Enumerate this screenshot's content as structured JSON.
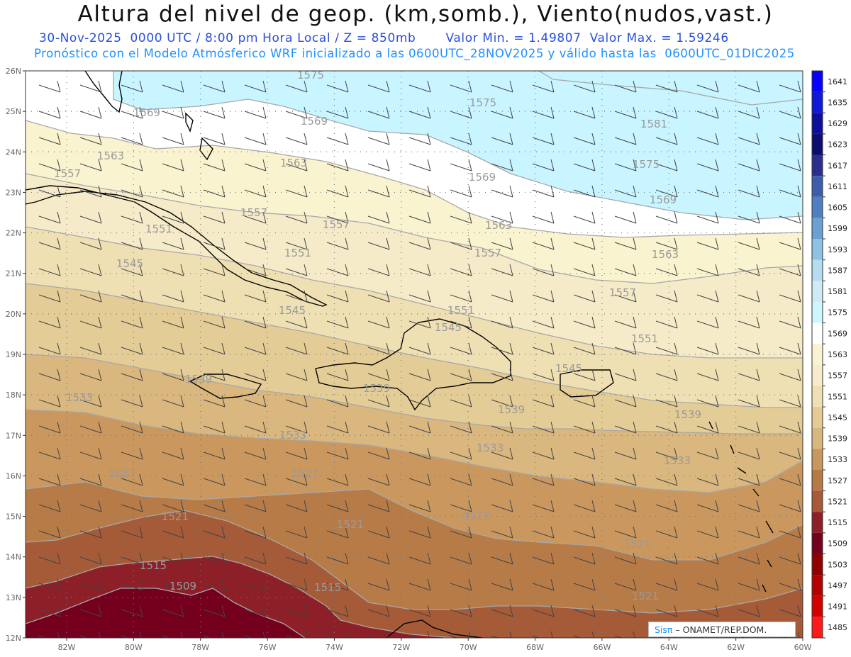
{
  "header": {
    "title": "Altura del nivel de geop. (km,somb.), Viento(nudos,vast.)",
    "line1_date": "30-Nov-2025  0000 UTC / 8:00 pm Hora Local / Z = 850mb",
    "line1_values": "Valor Min. = 1.49807  Valor Max. = 1.59246",
    "line2": "Pronóstico con el Modelo Atmósferico WRF inicializado a las 0600UTC_28NOV2025 y válido hasta las  0600UTC_01DIC2025"
  },
  "map": {
    "lat_labels": [
      "26N",
      "25N",
      "24N",
      "23N",
      "22N",
      "21N",
      "20N",
      "19N",
      "18N",
      "17N",
      "16N",
      "15N",
      "14N",
      "13N",
      "12N"
    ],
    "lon_labels": [
      "82W",
      "80W",
      "78W",
      "76W",
      "74W",
      "72W",
      "70W",
      "68W",
      "66W",
      "64W",
      "62W",
      "60W"
    ],
    "contour_labels": [
      {
        "text": "1575",
        "pos": "a"
      },
      {
        "text": "1575",
        "pos": "b"
      },
      {
        "text": "1581",
        "pos": "c"
      },
      {
        "text": "1569",
        "pos": "d"
      },
      {
        "text": "1569",
        "pos": "e"
      },
      {
        "text": "1575",
        "pos": "f"
      },
      {
        "text": "1563",
        "pos": "g"
      },
      {
        "text": "1563",
        "pos": "h"
      },
      {
        "text": "1569",
        "pos": "i"
      },
      {
        "text": "1569",
        "pos": "j"
      },
      {
        "text": "1557",
        "pos": "k"
      },
      {
        "text": "1557",
        "pos": "l"
      },
      {
        "text": "1557",
        "pos": "m"
      },
      {
        "text": "1563",
        "pos": "n"
      },
      {
        "text": "1551",
        "pos": "o"
      },
      {
        "text": "1551",
        "pos": "p"
      },
      {
        "text": "1557",
        "pos": "q"
      },
      {
        "text": "1563",
        "pos": "r"
      },
      {
        "text": "1545",
        "pos": "s"
      },
      {
        "text": "1557",
        "pos": "t"
      },
      {
        "text": "1545",
        "pos": "u"
      },
      {
        "text": "1551",
        "pos": "v"
      },
      {
        "text": "1545",
        "pos": "w"
      },
      {
        "text": "1551",
        "pos": "x"
      },
      {
        "text": "1539",
        "pos": "y"
      },
      {
        "text": "1545",
        "pos": "z"
      },
      {
        "text": "1533",
        "pos": "aa"
      },
      {
        "text": "1539",
        "pos": "ab"
      },
      {
        "text": "1539",
        "pos": "ac"
      },
      {
        "text": "1539",
        "pos": "ad"
      },
      {
        "text": "1533",
        "pos": "ae"
      },
      {
        "text": "1533",
        "pos": "af"
      },
      {
        "text": "1527",
        "pos": "ag"
      },
      {
        "text": "1527",
        "pos": "ah"
      },
      {
        "text": "1533",
        "pos": "ai"
      },
      {
        "text": "1521",
        "pos": "aj"
      },
      {
        "text": "1521",
        "pos": "ak"
      },
      {
        "text": "1527",
        "pos": "al"
      },
      {
        "text": "1521",
        "pos": "am"
      },
      {
        "text": "1515",
        "pos": "an"
      },
      {
        "text": "1509",
        "pos": "ao"
      },
      {
        "text": "1515",
        "pos": "ap"
      },
      {
        "text": "1521",
        "pos": "aq"
      }
    ]
  },
  "colorbar": {
    "levels": [
      "1641",
      "1635",
      "1629",
      "1623",
      "1617",
      "1611",
      "1605",
      "1599",
      "1593",
      "1587",
      "1581",
      "1575",
      "1569",
      "1563",
      "1557",
      "1551",
      "1545",
      "1539",
      "1533",
      "1527",
      "1521",
      "1515",
      "1509",
      "1503",
      "1497",
      "1491",
      "1485"
    ],
    "colors": [
      "#0a00ff",
      "#0e1ad8",
      "#0d0f9a",
      "#0c0d6e",
      "#2a2f8f",
      "#3d5cae",
      "#4f7fc2",
      "#6aa0d2",
      "#8ec1e2",
      "#b5dcef",
      "#cdeaf5",
      "#cdf7ff",
      "#ffffff",
      "#fbf2cf",
      "#f6eccb",
      "#efdfb2",
      "#e4cb95",
      "#d8b77d",
      "#c9975d",
      "#b77a47",
      "#a65a38",
      "#8e1e28",
      "#75001e",
      "#8f0000",
      "#b30000",
      "#d40000",
      "#ff1a1a"
    ]
  },
  "credit": {
    "brand": "Sisπ",
    "text": "– ONAMET/REP.DOM."
  }
}
